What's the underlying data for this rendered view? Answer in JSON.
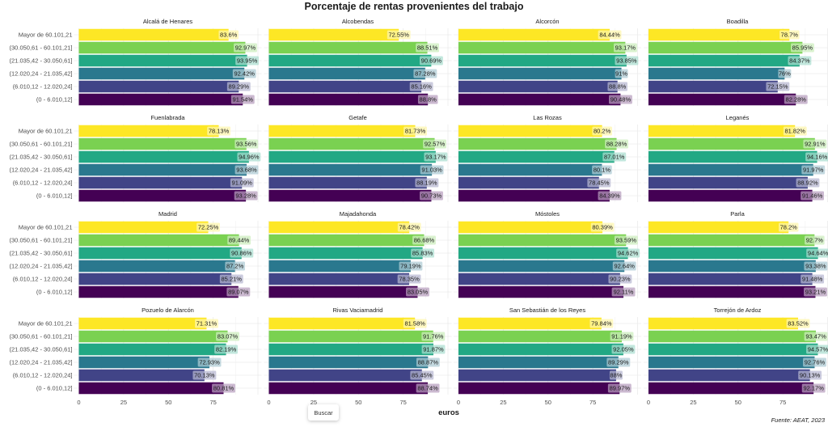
{
  "chart_data": {
    "type": "bar",
    "orientation": "horizontal",
    "title": "Porcentaje de rentas provenientes del trabajo",
    "xlabel": "euros",
    "ylabel": "",
    "caption": "Fuente: AEAT, 2023",
    "xlim": [
      0,
      100
    ],
    "x_ticks": [
      "0",
      "25",
      "50",
      "75"
    ],
    "grid": true,
    "legend": "none",
    "categories": [
      "Mayor de 60.101,21",
      "(30.050,61 - 60.101,21]",
      "(21.035,42 - 30.050,61]",
      "(12.020,24 - 21.035,42]",
      "(6.010,12 - 12.020,24]",
      "(0 - 6.010,12]"
    ],
    "colors": [
      "#FDE725",
      "#7AD151",
      "#22A884",
      "#2A788E",
      "#414487",
      "#440154"
    ],
    "label_suffix": "%",
    "facets": [
      {
        "name": "Alcalá de Henares",
        "values": [
          83.6,
          92.97,
          93.95,
          92.42,
          89.29,
          91.54
        ]
      },
      {
        "name": "Alcobendas",
        "values": [
          72.55,
          88.51,
          90.69,
          87.28,
          85.16,
          88.8
        ]
      },
      {
        "name": "Alcorcón",
        "values": [
          84.44,
          93.17,
          93.85,
          91,
          88.8,
          90.48
        ]
      },
      {
        "name": "Boadilla",
        "values": [
          78.7,
          85.95,
          84.37,
          76,
          72.15,
          82.28
        ]
      },
      {
        "name": "Fuenlabrada",
        "values": [
          78.13,
          93.56,
          94.96,
          93.68,
          91.09,
          93.28
        ]
      },
      {
        "name": "Getafe",
        "values": [
          81.73,
          92.57,
          93.17,
          91.03,
          88.19,
          90.73
        ]
      },
      {
        "name": "Las Rozas",
        "values": [
          80.2,
          88.28,
          87.01,
          80.1,
          78.45,
          84.39
        ]
      },
      {
        "name": "Leganés",
        "values": [
          81.82,
          92.91,
          94.16,
          91.97,
          88.92,
          91.46
        ]
      },
      {
        "name": "Madrid",
        "values": [
          72.25,
          89.44,
          90.86,
          87.2,
          85.21,
          89.07
        ]
      },
      {
        "name": "Majadahonda",
        "values": [
          78.42,
          86.68,
          85.83,
          79.19,
          78.35,
          83.05
        ]
      },
      {
        "name": "Móstoles",
        "values": [
          80.39,
          93.59,
          94.62,
          92.64,
          90.23,
          92.11
        ]
      },
      {
        "name": "Parla",
        "values": [
          78.2,
          92.7,
          94.64,
          93.38,
          91.48,
          93.21
        ]
      },
      {
        "name": "Pozuelo de Alarcón",
        "values": [
          71.31,
          83.07,
          82.19,
          72.93,
          70.13,
          80.81
        ]
      },
      {
        "name": "Rivas Vaciamadrid",
        "values": [
          81.58,
          91.76,
          91.87,
          88.87,
          85.45,
          88.74
        ]
      },
      {
        "name": "San Sebastián de los Reyes",
        "values": [
          79.84,
          91.19,
          92.05,
          89.29,
          88,
          89.97
        ]
      },
      {
        "name": "Torrejón de Ardoz",
        "values": [
          83.52,
          93.47,
          94.57,
          92.76,
          90.13,
          92.17
        ]
      }
    ]
  },
  "ui": {
    "search_button": "Buscar"
  }
}
